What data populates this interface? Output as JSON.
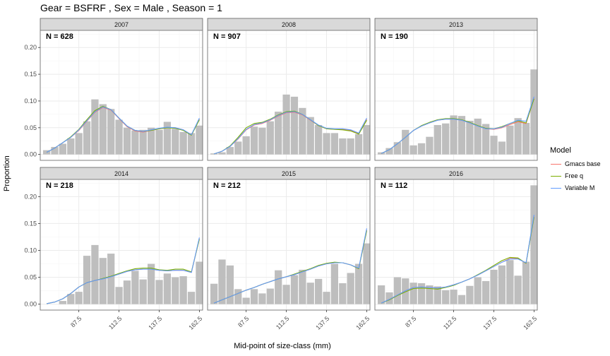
{
  "title": "Gear = BSFRF , Sex = Male , Season = 1",
  "xlabel": "Mid-point of size-class (mm)",
  "ylabel": "Proportion",
  "legend": {
    "title": "Model",
    "items": [
      {
        "label": "Gmacs base",
        "color": "#F8766D"
      },
      {
        "label": "Free q",
        "color": "#7CAE00"
      },
      {
        "label": "Variable M",
        "color": "#619CFF"
      }
    ]
  },
  "colors": {
    "bar": "#bebebe",
    "strip_bg": "#d9d9d9",
    "panel_border": "#7f7f7f",
    "grid": "#ebebeb"
  },
  "chart_data": {
    "type": "bar",
    "facets": [
      "2007",
      "2008",
      "2013",
      "2014",
      "2015",
      "2016"
    ],
    "n_labels": [
      "N = 628",
      "N = 907",
      "N = 190",
      "N = 218",
      "N = 212",
      "N = 112"
    ],
    "x_ticks": [
      87.5,
      112.5,
      137.5,
      162.5
    ],
    "x_tick_labels": [
      "87.5",
      "112.5",
      "137.5",
      "162.5"
    ],
    "y_ticks": [
      0.0,
      0.05,
      0.1,
      0.15,
      0.2
    ],
    "y_tick_labels": [
      "0.00",
      "0.05",
      "0.10",
      "0.15",
      "0.20"
    ],
    "xlim": [
      63.5,
      164.5
    ],
    "ylim": [
      -0.011,
      0.232
    ],
    "size_classes": [
      67.5,
      72.5,
      77.5,
      82.5,
      87.5,
      92.5,
      97.5,
      102.5,
      107.5,
      112.5,
      117.5,
      122.5,
      127.5,
      132.5,
      137.5,
      142.5,
      147.5,
      152.5,
      157.5,
      162.5
    ],
    "panels": [
      {
        "year": "2007",
        "observed": [
          0.008,
          0.014,
          0.02,
          0.03,
          0.04,
          0.062,
          0.103,
          0.094,
          0.085,
          0.065,
          0.05,
          0.045,
          0.046,
          0.05,
          0.046,
          0.061,
          0.048,
          0.042,
          0.04,
          0.054
        ],
        "predicted": {
          "Gmacs base": [
            0.004,
            0.012,
            0.022,
            0.032,
            0.045,
            0.062,
            0.079,
            0.088,
            0.083,
            0.067,
            0.052,
            0.044,
            0.042,
            0.045,
            0.048,
            0.05,
            0.05,
            0.046,
            0.037,
            0.066
          ],
          "Free q": [
            0.004,
            0.012,
            0.022,
            0.033,
            0.047,
            0.065,
            0.082,
            0.09,
            0.084,
            0.068,
            0.053,
            0.045,
            0.043,
            0.045,
            0.048,
            0.05,
            0.049,
            0.045,
            0.036,
            0.065
          ],
          "Variable M": [
            0.004,
            0.012,
            0.022,
            0.032,
            0.046,
            0.063,
            0.08,
            0.089,
            0.084,
            0.068,
            0.053,
            0.045,
            0.043,
            0.046,
            0.049,
            0.051,
            0.05,
            0.046,
            0.037,
            0.068
          ]
        }
      },
      {
        "year": "2008",
        "observed": [
          0.002,
          0.004,
          0.014,
          0.024,
          0.034,
          0.052,
          0.05,
          0.062,
          0.08,
          0.112,
          0.108,
          0.087,
          0.07,
          0.055,
          0.04,
          0.04,
          0.03,
          0.03,
          0.038,
          0.055
        ],
        "predicted": {
          "Gmacs base": [
            0.001,
            0.006,
            0.015,
            0.029,
            0.046,
            0.055,
            0.058,
            0.064,
            0.072,
            0.078,
            0.079,
            0.074,
            0.064,
            0.054,
            0.048,
            0.047,
            0.047,
            0.045,
            0.039,
            0.066
          ],
          "Free q": [
            0.001,
            0.006,
            0.016,
            0.032,
            0.05,
            0.058,
            0.06,
            0.066,
            0.074,
            0.08,
            0.081,
            0.075,
            0.065,
            0.054,
            0.048,
            0.047,
            0.046,
            0.044,
            0.038,
            0.064
          ],
          "Variable M": [
            0.001,
            0.006,
            0.015,
            0.03,
            0.047,
            0.056,
            0.059,
            0.065,
            0.073,
            0.079,
            0.08,
            0.075,
            0.065,
            0.055,
            0.049,
            0.048,
            0.048,
            0.046,
            0.04,
            0.068
          ]
        }
      },
      {
        "year": "2013",
        "observed": [
          0.004,
          0.012,
          0.023,
          0.046,
          0.017,
          0.021,
          0.033,
          0.055,
          0.058,
          0.073,
          0.072,
          0.063,
          0.067,
          0.057,
          0.035,
          0.024,
          0.054,
          0.068,
          0.059,
          0.159
        ],
        "predicted": {
          "Gmacs base": [
            0.002,
            0.009,
            0.02,
            0.032,
            0.045,
            0.053,
            0.059,
            0.064,
            0.066,
            0.066,
            0.064,
            0.059,
            0.053,
            0.048,
            0.047,
            0.05,
            0.056,
            0.061,
            0.058,
            0.105
          ],
          "Free q": [
            0.002,
            0.009,
            0.02,
            0.032,
            0.045,
            0.054,
            0.06,
            0.065,
            0.067,
            0.067,
            0.065,
            0.06,
            0.054,
            0.049,
            0.048,
            0.052,
            0.058,
            0.063,
            0.059,
            0.104
          ],
          "Variable M": [
            0.002,
            0.009,
            0.02,
            0.032,
            0.045,
            0.053,
            0.059,
            0.064,
            0.066,
            0.066,
            0.064,
            0.059,
            0.053,
            0.048,
            0.048,
            0.051,
            0.058,
            0.064,
            0.062,
            0.108
          ]
        }
      },
      {
        "year": "2014",
        "observed": [
          0.0,
          0.0,
          0.006,
          0.019,
          0.023,
          0.09,
          0.11,
          0.086,
          0.094,
          0.032,
          0.044,
          0.062,
          0.046,
          0.075,
          0.045,
          0.057,
          0.05,
          0.052,
          0.023,
          0.079
        ],
        "predicted": {
          "Gmacs base": [
            0.001,
            0.004,
            0.01,
            0.02,
            0.032,
            0.04,
            0.044,
            0.047,
            0.051,
            0.056,
            0.061,
            0.064,
            0.065,
            0.065,
            0.063,
            0.062,
            0.063,
            0.063,
            0.059,
            0.122
          ],
          "Free q": [
            0.001,
            0.004,
            0.01,
            0.02,
            0.032,
            0.04,
            0.044,
            0.048,
            0.052,
            0.057,
            0.062,
            0.066,
            0.067,
            0.067,
            0.064,
            0.063,
            0.065,
            0.065,
            0.06,
            0.121
          ],
          "Variable M": [
            0.001,
            0.004,
            0.01,
            0.02,
            0.032,
            0.04,
            0.044,
            0.047,
            0.051,
            0.056,
            0.061,
            0.064,
            0.065,
            0.065,
            0.063,
            0.062,
            0.063,
            0.063,
            0.059,
            0.124
          ]
        }
      },
      {
        "year": "2015",
        "observed": [
          0.038,
          0.083,
          0.072,
          0.028,
          0.012,
          0.028,
          0.02,
          0.029,
          0.063,
          0.036,
          0.054,
          0.064,
          0.04,
          0.047,
          0.023,
          0.075,
          0.039,
          0.058,
          0.075,
          0.113
        ],
        "predicted": {
          "Gmacs base": [
            0.002,
            0.008,
            0.014,
            0.02,
            0.026,
            0.031,
            0.037,
            0.042,
            0.047,
            0.051,
            0.055,
            0.06,
            0.065,
            0.071,
            0.075,
            0.077,
            0.077,
            0.073,
            0.066,
            0.138
          ],
          "Free q": [
            0.002,
            0.008,
            0.014,
            0.02,
            0.026,
            0.031,
            0.037,
            0.042,
            0.047,
            0.051,
            0.056,
            0.061,
            0.066,
            0.072,
            0.076,
            0.078,
            0.077,
            0.073,
            0.066,
            0.137
          ],
          "Variable M": [
            0.002,
            0.008,
            0.014,
            0.02,
            0.026,
            0.031,
            0.037,
            0.042,
            0.047,
            0.051,
            0.055,
            0.06,
            0.065,
            0.071,
            0.075,
            0.077,
            0.077,
            0.073,
            0.067,
            0.141
          ]
        }
      },
      {
        "year": "2016",
        "observed": [
          0.035,
          0.022,
          0.05,
          0.048,
          0.04,
          0.039,
          0.035,
          0.033,
          0.026,
          0.027,
          0.017,
          0.034,
          0.05,
          0.043,
          0.064,
          0.072,
          0.082,
          0.053,
          0.079,
          0.221
        ],
        "predicted": {
          "Gmacs base": [
            0.002,
            0.009,
            0.017,
            0.025,
            0.031,
            0.032,
            0.031,
            0.03,
            0.032,
            0.036,
            0.041,
            0.047,
            0.054,
            0.062,
            0.07,
            0.078,
            0.085,
            0.085,
            0.076,
            0.163
          ],
          "Free q": [
            0.002,
            0.008,
            0.016,
            0.023,
            0.029,
            0.03,
            0.029,
            0.028,
            0.031,
            0.035,
            0.041,
            0.047,
            0.055,
            0.063,
            0.072,
            0.081,
            0.087,
            0.086,
            0.076,
            0.162
          ],
          "Variable M": [
            0.002,
            0.009,
            0.017,
            0.025,
            0.031,
            0.032,
            0.031,
            0.03,
            0.032,
            0.036,
            0.041,
            0.047,
            0.054,
            0.062,
            0.07,
            0.078,
            0.084,
            0.084,
            0.077,
            0.166
          ]
        }
      }
    ]
  }
}
